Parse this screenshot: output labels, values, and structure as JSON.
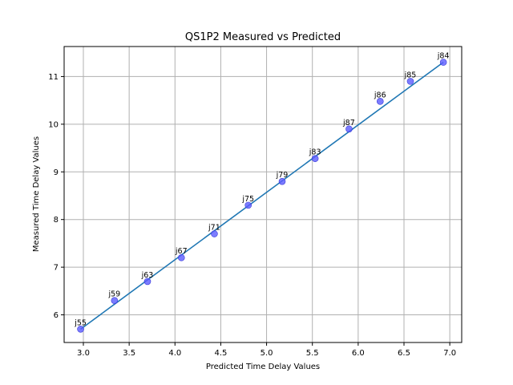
{
  "chart_data": {
    "type": "scatter",
    "title": "QS1P2 Measured vs Predicted",
    "xlabel": "Predicted Time Delay Values",
    "ylabel": "Measured Time Delay Values",
    "xlim": [
      2.79,
      7.13
    ],
    "ylim": [
      5.42,
      11.63
    ],
    "x_ticks": [
      3.0,
      3.5,
      4.0,
      4.5,
      5.0,
      5.5,
      6.0,
      6.5,
      7.0
    ],
    "x_tick_labels": [
      "3.0",
      "3.5",
      "4.0",
      "4.5",
      "5.0",
      "5.5",
      "6.0",
      "6.5",
      "7.0"
    ],
    "y_ticks": [
      6,
      7,
      8,
      9,
      10,
      11
    ],
    "y_tick_labels": [
      "6",
      "7",
      "8",
      "9",
      "10",
      "11"
    ],
    "grid": true,
    "point_color": "#5b5bff",
    "line_color": "#1f77b4",
    "points": [
      {
        "label": "j55",
        "x": 2.97,
        "y": 5.7
      },
      {
        "label": "j59",
        "x": 3.34,
        "y": 6.3
      },
      {
        "label": "j63",
        "x": 3.7,
        "y": 6.7
      },
      {
        "label": "j67",
        "x": 4.07,
        "y": 7.2
      },
      {
        "label": "j71",
        "x": 4.43,
        "y": 7.7
      },
      {
        "label": "j75",
        "x": 4.8,
        "y": 8.3
      },
      {
        "label": "j79",
        "x": 5.17,
        "y": 8.8
      },
      {
        "label": "j83",
        "x": 5.53,
        "y": 9.28
      },
      {
        "label": "j87",
        "x": 5.9,
        "y": 9.9
      },
      {
        "label": "j86",
        "x": 6.24,
        "y": 10.48
      },
      {
        "label": "j85",
        "x": 6.57,
        "y": 10.9
      },
      {
        "label": "j84",
        "x": 6.93,
        "y": 11.3
      }
    ],
    "fit_line": {
      "x": [
        2.97,
        6.93
      ],
      "y": [
        5.7,
        11.3
      ]
    }
  }
}
